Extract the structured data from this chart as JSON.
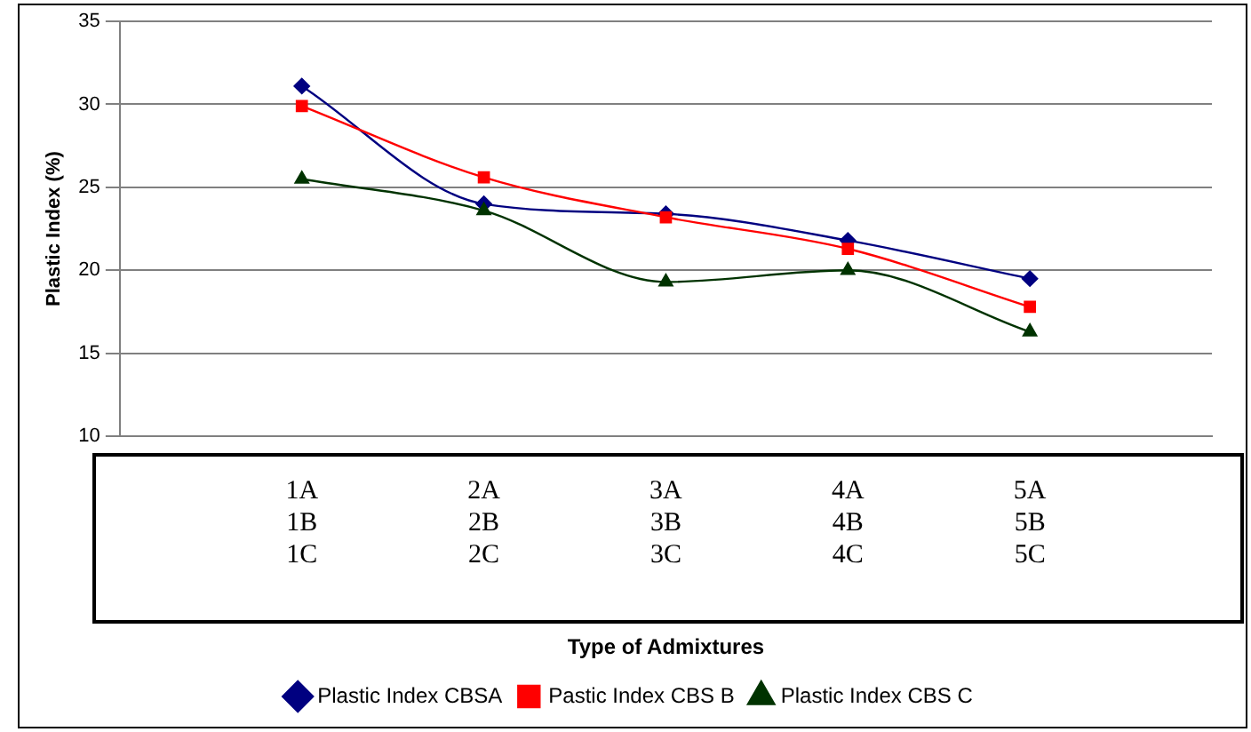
{
  "chart_data": {
    "type": "line",
    "xlabel": "Type of Admixtures",
    "ylabel": "Plastic Index (%)",
    "categories": [
      null,
      "1A\n1B\n1C",
      "2A\n2B\n2C",
      "3A\n3B\n3C",
      "4A\n4B\n4C",
      "5A\n5B\n5C",
      null
    ],
    "series": [
      {
        "name": "Plastic Index CBSA",
        "color": "#000080",
        "marker": "diamond",
        "values": [
          null,
          31.1,
          24,
          23.4,
          21.8,
          19.5,
          null
        ]
      },
      {
        "name": "Pastic Index CBS B",
        "color": "#ff0000",
        "marker": "square",
        "values": [
          null,
          29.9,
          25.6,
          23.2,
          21.3,
          17.8,
          null
        ]
      },
      {
        "name": "Plastic Index CBS C",
        "color": "#003300",
        "marker": "triangle",
        "values": [
          null,
          25.5,
          23.6,
          19.3,
          20,
          16.3,
          null
        ]
      }
    ],
    "ylim": [
      10,
      35
    ],
    "yticks": [
      10,
      15,
      20,
      25,
      30,
      35
    ],
    "grid": "y",
    "legend": "bottom"
  }
}
